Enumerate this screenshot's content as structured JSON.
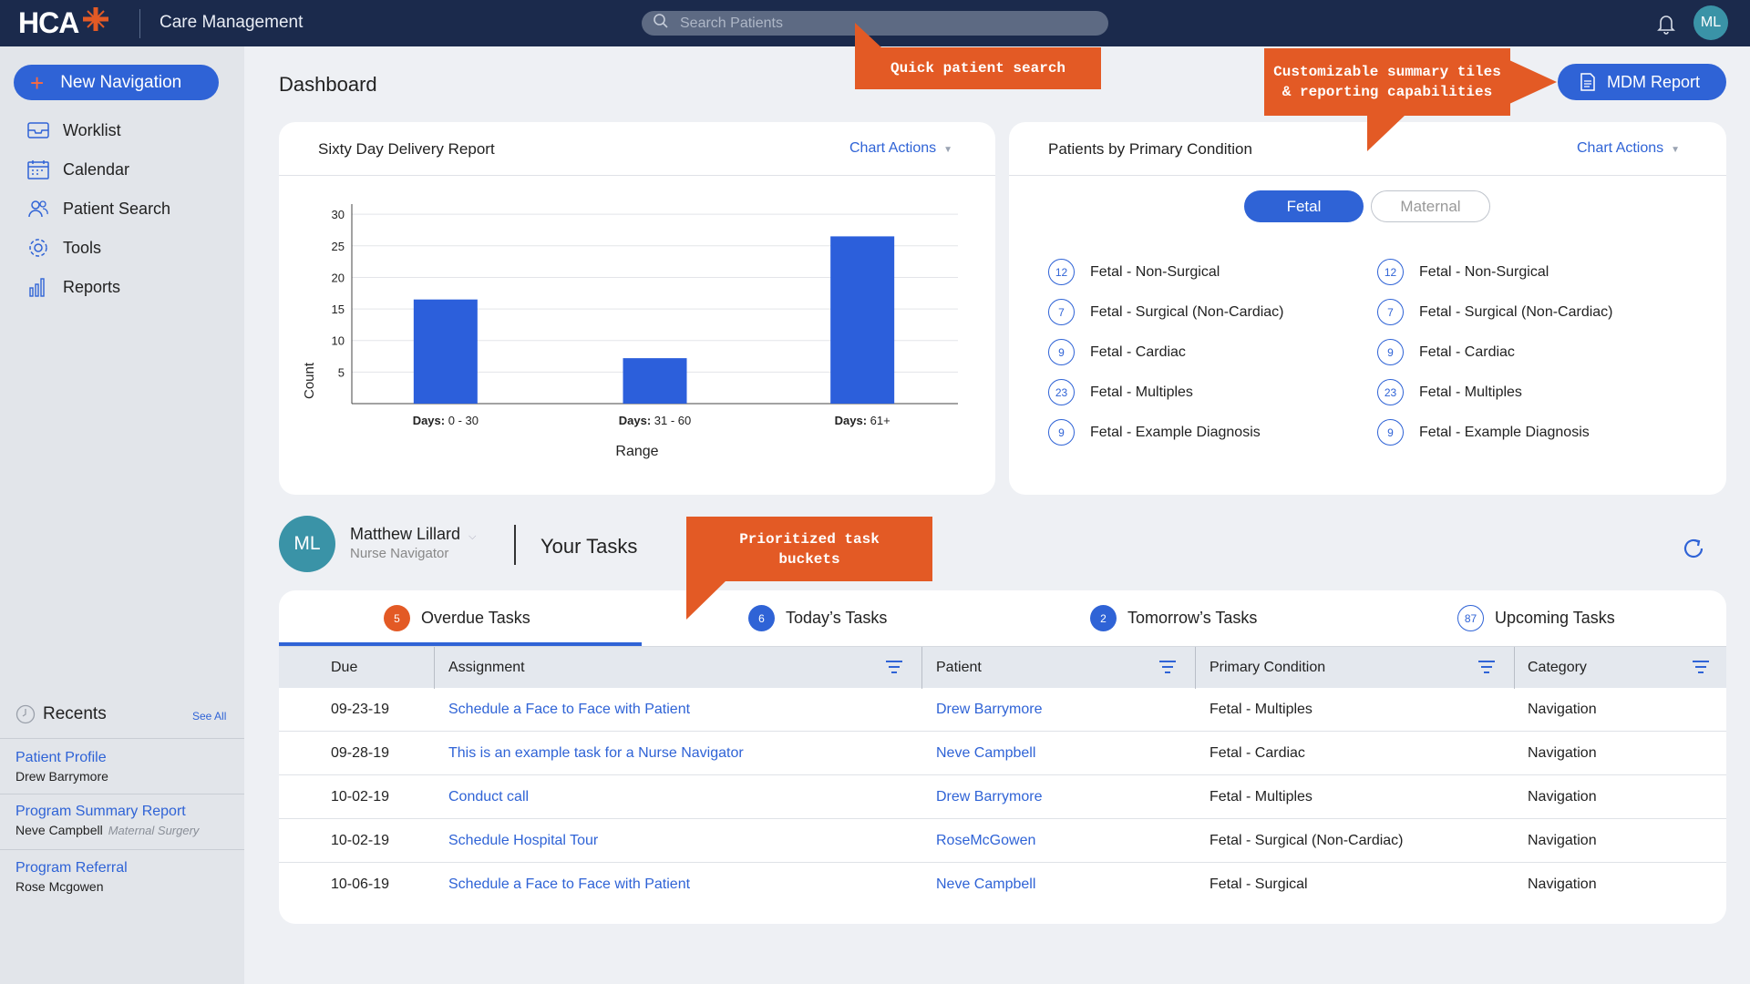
{
  "topbar": {
    "logo_text": "HCA",
    "app_title": "Care Management",
    "search_placeholder": "Search Patients",
    "avatar_initials": "ML"
  },
  "sidebar": {
    "new_nav_label": "New Navigation",
    "items": [
      {
        "label": "Worklist",
        "icon": "inbox-icon"
      },
      {
        "label": "Calendar",
        "icon": "calendar-icon"
      },
      {
        "label": "Patient Search",
        "icon": "people-icon"
      },
      {
        "label": "Tools",
        "icon": "gear-icon"
      },
      {
        "label": "Reports",
        "icon": "bar-chart-icon"
      }
    ],
    "recents_title": "Recents",
    "see_all": "See All",
    "recents": [
      {
        "title": "Patient Profile",
        "sub": "Drew Barrymore",
        "tag": ""
      },
      {
        "title": "Program Summary Report",
        "sub": "Neve Campbell",
        "tag": "Maternal Surgery"
      },
      {
        "title": "Program Referral",
        "sub": "Rose Mcgowen",
        "tag": ""
      }
    ]
  },
  "page_title": "Dashboard",
  "mdm_report_label": "MDM Report",
  "delivery_card": {
    "title": "Sixty Day Delivery Report",
    "chart_actions": "Chart Actions"
  },
  "chart_data": {
    "type": "bar",
    "categories": [
      "Days: 0 - 30",
      "Days: 31 - 60",
      "Days: 61+"
    ],
    "values": [
      16.5,
      7.2,
      26.5
    ],
    "title": "Sixty Day Delivery Report",
    "xlabel": "Range",
    "ylabel": "Count",
    "ylim": [
      0,
      30
    ],
    "yticks": [
      5,
      10,
      15,
      20,
      25,
      30
    ],
    "bar_color": "#2c5fdb"
  },
  "condition_card": {
    "title": "Patients by Primary Condition",
    "chart_actions": "Chart Actions",
    "toggle_fetal": "Fetal",
    "toggle_maternal": "Maternal",
    "left": [
      {
        "count": "12",
        "label": "Fetal - Non-Surgical"
      },
      {
        "count": "7",
        "label": "Fetal - Surgical (Non-Cardiac)"
      },
      {
        "count": "9",
        "label": "Fetal - Cardiac"
      },
      {
        "count": "23",
        "label": "Fetal - Multiples"
      },
      {
        "count": "9",
        "label": "Fetal - Example Diagnosis"
      }
    ],
    "right": [
      {
        "count": "12",
        "label": "Fetal - Non-Surgical"
      },
      {
        "count": "7",
        "label": "Fetal - Surgical (Non-Cardiac)"
      },
      {
        "count": "9",
        "label": "Fetal - Cardiac"
      },
      {
        "count": "23",
        "label": "Fetal - Multiples"
      },
      {
        "count": "9",
        "label": "Fetal - Example Diagnosis"
      }
    ]
  },
  "user": {
    "initials": "ML",
    "name": "Matthew Lillard",
    "role": "Nurse Navigator"
  },
  "your_tasks_title": "Your Tasks",
  "tabs": [
    {
      "count": "5",
      "label": "Overdue Tasks",
      "color": "#e35a25"
    },
    {
      "count": "6",
      "label": "Today’s Tasks",
      "color": "#2f63d6"
    },
    {
      "count": "2",
      "label": "Tomorrow’s Tasks",
      "color": "#2f63d6"
    },
    {
      "count": "87",
      "label": "Upcoming Tasks",
      "color": "outline"
    }
  ],
  "table": {
    "headers": [
      "Due",
      "Assignment",
      "Patient",
      "Primary Condition",
      "Category"
    ],
    "rows": [
      {
        "due": "09-23-19",
        "assignment": "Schedule a Face to Face with Patient",
        "patient": "Drew Barrymore",
        "condition": "Fetal - Multiples",
        "category": "Navigation"
      },
      {
        "due": "09-28-19",
        "assignment": "This is an example task for a Nurse Navigator",
        "patient": "Neve Campbell",
        "condition": "Fetal - Cardiac",
        "category": "Navigation"
      },
      {
        "due": "10-02-19",
        "assignment": "Conduct call",
        "patient": "Drew Barrymore",
        "condition": "Fetal - Multiples",
        "category": "Navigation"
      },
      {
        "due": "10-02-19",
        "assignment": "Schedule Hospital Tour",
        "patient": "RoseMcGowen",
        "condition": "Fetal - Surgical (Non-Cardiac)",
        "category": "Navigation"
      },
      {
        "due": "10-06-19",
        "assignment": "Schedule a Face to Face with Patient",
        "patient": "Neve Campbell",
        "condition": "Fetal - Surgical",
        "category": "Navigation"
      }
    ]
  },
  "callouts": {
    "search": "Quick patient search",
    "summary": "Customizable summary tiles & reporting capabilities",
    "tasks": "Prioritized task buckets"
  }
}
